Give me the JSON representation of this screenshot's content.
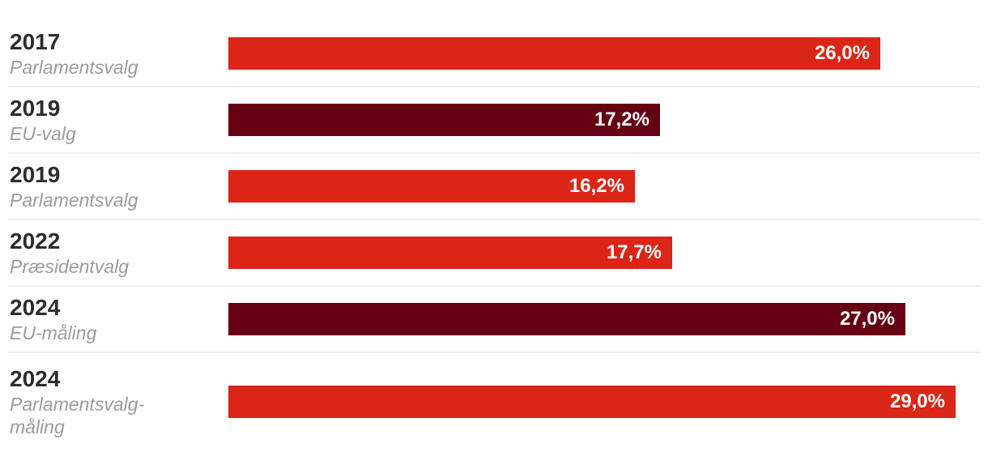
{
  "chart_data": {
    "type": "bar",
    "orientation": "horizontal",
    "title": "",
    "xlabel": "",
    "ylabel": "",
    "unit": "%",
    "xlim": [
      0,
      29.5
    ],
    "grid": false,
    "legend": false,
    "value_label_position": "inside-end",
    "colors": {
      "red": "#da2517",
      "darkred": "#650013",
      "year_text": "#2d2d2d",
      "event_text": "#9b9b9b",
      "divider": "#ededed",
      "value_text": "#ffffff",
      "background": "#ffffff"
    },
    "rows": [
      {
        "year": "2017",
        "event": "Parlamentsvalg",
        "value": 26.0,
        "value_label": "26,0%",
        "color": "red"
      },
      {
        "year": "2019",
        "event": "EU-valg",
        "value": 17.2,
        "value_label": "17,2%",
        "color": "darkred"
      },
      {
        "year": "2019",
        "event": "Parlamentsvalg",
        "value": 16.2,
        "value_label": "16,2%",
        "color": "red"
      },
      {
        "year": "2022",
        "event": "Præsidentvalg",
        "value": 17.7,
        "value_label": "17,7%",
        "color": "red"
      },
      {
        "year": "2024",
        "event": "EU-måling",
        "value": 27.0,
        "value_label": "27,0%",
        "color": "darkred"
      },
      {
        "year": "2024",
        "event": "Parlamentsvalg-måling",
        "value": 29.0,
        "value_label": "29,0%",
        "color": "red"
      }
    ]
  }
}
